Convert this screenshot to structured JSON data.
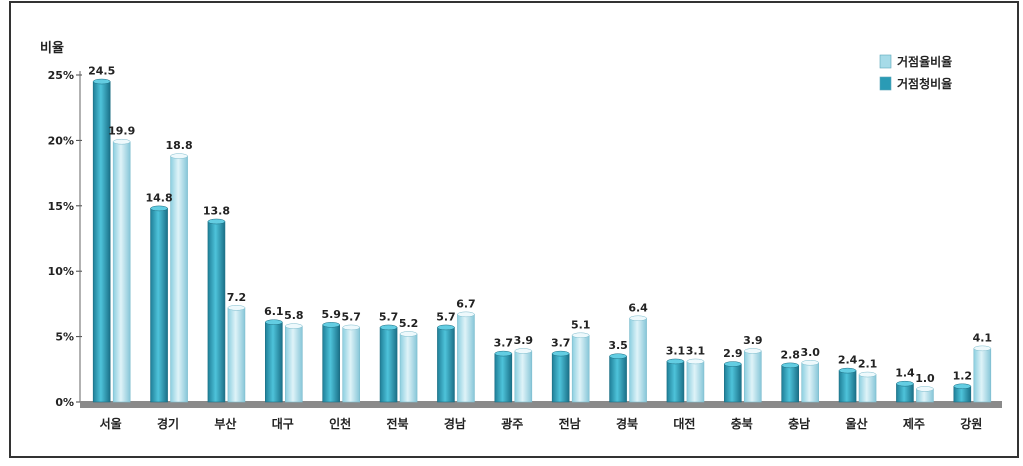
{
  "chart_data": {
    "type": "bar",
    "ylabel": "비율",
    "ylim": [
      0,
      25
    ],
    "yticks": [
      {
        "value": 0,
        "label": "0%"
      },
      {
        "value": 5,
        "label": "5%"
      },
      {
        "value": 10,
        "label": "10%"
      },
      {
        "value": 15,
        "label": "15%"
      },
      {
        "value": 20,
        "label": "20%"
      },
      {
        "value": 25,
        "label": "25%"
      }
    ],
    "grid": false,
    "legend_position": "top-right",
    "categories": [
      "서울",
      "경기",
      "부산",
      "대구",
      "인천",
      "전북",
      "경남",
      "광주",
      "전남",
      "경북",
      "대전",
      "충북",
      "충남",
      "울산",
      "제주",
      "강원"
    ],
    "series": [
      {
        "name": "거점청비율",
        "color": "#2a9bb5",
        "values": [
          24.5,
          14.8,
          13.8,
          6.1,
          5.9,
          5.7,
          5.7,
          3.7,
          3.7,
          3.5,
          3.1,
          2.9,
          2.8,
          2.4,
          1.4,
          1.2
        ],
        "labels": [
          "24.5",
          "14.8",
          "13.8",
          "6.1",
          "5.9",
          "5.7",
          "5.7",
          "3.7",
          "3.7",
          "3.5",
          "3.1",
          "2.9",
          "2.8",
          "2.4",
          "1.4",
          "1.2"
        ]
      },
      {
        "name": "거점율비율",
        "color": "#a6dbe8",
        "values": [
          19.9,
          18.8,
          7.2,
          5.8,
          5.7,
          5.2,
          6.7,
          3.9,
          5.1,
          6.4,
          3.1,
          3.9,
          3.0,
          2.1,
          1.0,
          4.1
        ],
        "labels": [
          "19.9",
          "18.8",
          "7.2",
          "5.8",
          "5.7",
          "5.2",
          "6.7",
          "3.9",
          "5.1",
          "6.4",
          "3.1",
          "3.9",
          "3.0",
          "2.1",
          "1.0",
          "4.1"
        ]
      }
    ],
    "legend": [
      {
        "label": "거점율비율",
        "color": "#a6dbe8"
      },
      {
        "label": "거점청비율",
        "color": "#2a9bb5"
      }
    ]
  }
}
